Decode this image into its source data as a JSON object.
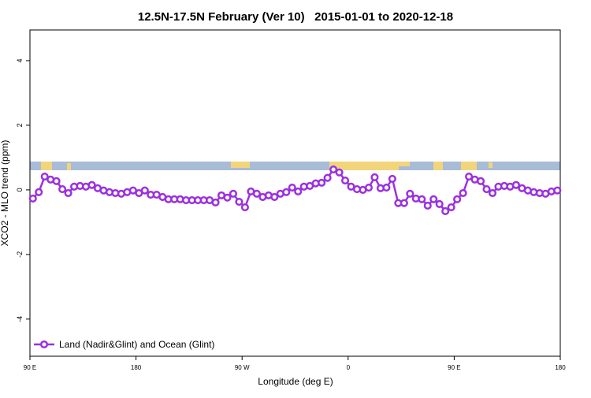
{
  "chart_data": {
    "type": "line",
    "title": "12.5N-17.5N February (Ver 10)   2015-01-01 to 2020-12-18",
    "xlabel": "Longitude (deg E)",
    "ylabel": "XCO2 - MLO trend (ppm)",
    "xlim": [
      90,
      540
    ],
    "ylim": [
      -5.15,
      4.95
    ],
    "xticks": [
      {
        "value": 90,
        "label": "90 E"
      },
      180,
      {
        "value": 270,
        "label": "90 W"
      },
      {
        "value": 360,
        "label": "0"
      },
      {
        "value": 450,
        "label": "90 E"
      },
      {
        "value": 540,
        "label": "180"
      }
    ],
    "yticks": [
      -4,
      -2,
      0,
      2,
      4
    ],
    "legend": "lower left",
    "x": [
      92.5,
      97.5,
      102.5,
      107.5,
      112.5,
      117.5,
      122.5,
      127.5,
      132.5,
      137.5,
      142.5,
      147.5,
      152.5,
      157.5,
      162.5,
      167.5,
      172.5,
      177.5,
      182.5,
      187.5,
      192.5,
      197.5,
      202.5,
      207.5,
      212.5,
      217.5,
      222.5,
      227.5,
      232.5,
      237.5,
      242.5,
      247.5,
      252.5,
      257.5,
      262.5,
      267.5,
      272.5,
      277.5,
      282.5,
      287.5,
      292.5,
      297.5,
      302.5,
      307.5,
      312.5,
      317.5,
      322.5,
      327.5,
      332.5,
      337.5,
      342.5,
      347.5,
      352.5,
      357.5,
      362.5,
      367.5,
      372.5,
      377.5,
      382.5,
      387.5,
      392.5,
      397.5,
      402.5,
      407.5,
      412.5,
      417.5,
      422.5,
      427.5,
      432.5,
      437.5,
      442.5,
      447.5,
      452.5,
      457.5,
      462.5,
      467.5,
      472.5,
      477.5,
      482.5,
      487.5,
      492.5,
      497.5,
      502.5,
      507.5,
      512.5,
      517.5,
      522.5,
      527.5,
      532.5,
      537.5
    ],
    "series": [
      {
        "name": "Land (Nadir&Glint) and Ocean (Glint)",
        "color": "#9b30e0",
        "values": [
          -0.27,
          -0.07,
          0.41,
          0.32,
          0.27,
          0.02,
          -0.1,
          0.1,
          0.12,
          0.1,
          0.15,
          0.05,
          -0.02,
          -0.07,
          -0.1,
          -0.12,
          -0.07,
          -0.02,
          -0.1,
          -0.02,
          -0.15,
          -0.15,
          -0.22,
          -0.29,
          -0.29,
          -0.29,
          -0.32,
          -0.32,
          -0.32,
          -0.32,
          -0.32,
          -0.39,
          -0.17,
          -0.24,
          -0.12,
          -0.37,
          -0.54,
          -0.05,
          -0.12,
          -0.22,
          -0.17,
          -0.22,
          -0.12,
          -0.07,
          0.07,
          -0.05,
          0.1,
          0.12,
          0.2,
          0.22,
          0.37,
          0.63,
          0.54,
          0.29,
          0.1,
          0.02,
          0.0,
          0.07,
          0.39,
          0.05,
          0.07,
          0.34,
          -0.41,
          -0.41,
          -0.12,
          -0.27,
          -0.29,
          -0.49,
          -0.29,
          -0.44,
          -0.66,
          -0.54,
          -0.29,
          -0.1,
          0.41,
          0.32,
          0.27,
          0.02,
          -0.1,
          0.1,
          0.12,
          0.1,
          0.15,
          0.05,
          -0.02,
          -0.07,
          -0.1,
          -0.12,
          -0.05,
          -0.02
        ]
      }
    ]
  }
}
